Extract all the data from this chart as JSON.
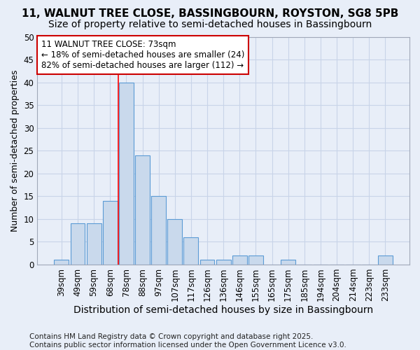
{
  "title1": "11, WALNUT TREE CLOSE, BASSINGBOURN, ROYSTON, SG8 5PB",
  "title2": "Size of property relative to semi-detached houses in Bassingbourn",
  "xlabel": "Distribution of semi-detached houses by size in Bassingbourn",
  "ylabel": "Number of semi-detached properties",
  "categories": [
    "39sqm",
    "49sqm",
    "59sqm",
    "68sqm",
    "78sqm",
    "88sqm",
    "97sqm",
    "107sqm",
    "117sqm",
    "126sqm",
    "136sqm",
    "146sqm",
    "155sqm",
    "165sqm",
    "175sqm",
    "185sqm",
    "194sqm",
    "204sqm",
    "214sqm",
    "223sqm",
    "233sqm"
  ],
  "values": [
    1,
    9,
    9,
    14,
    40,
    24,
    15,
    10,
    6,
    1,
    1,
    2,
    2,
    0,
    1,
    0,
    0,
    0,
    0,
    0,
    2
  ],
  "bar_color": "#c9d9ec",
  "bar_edge_color": "#5b9bd5",
  "grid_color": "#c8d4e8",
  "background_color": "#e8eef8",
  "red_line_x": 3.5,
  "annotation_line1": "11 WALNUT TREE CLOSE: 73sqm",
  "annotation_line2": "← 18% of semi-detached houses are smaller (24)",
  "annotation_line3": "82% of semi-detached houses are larger (112) →",
  "annotation_box_color": "#ffffff",
  "annotation_border_color": "#cc0000",
  "footer": "Contains HM Land Registry data © Crown copyright and database right 2025.\nContains public sector information licensed under the Open Government Licence v3.0.",
  "ylim": [
    0,
    50
  ],
  "title1_fontsize": 11,
  "title2_fontsize": 10,
  "xlabel_fontsize": 10,
  "ylabel_fontsize": 9,
  "tick_fontsize": 8.5,
  "footer_fontsize": 7.5,
  "annotation_fontsize": 8.5
}
